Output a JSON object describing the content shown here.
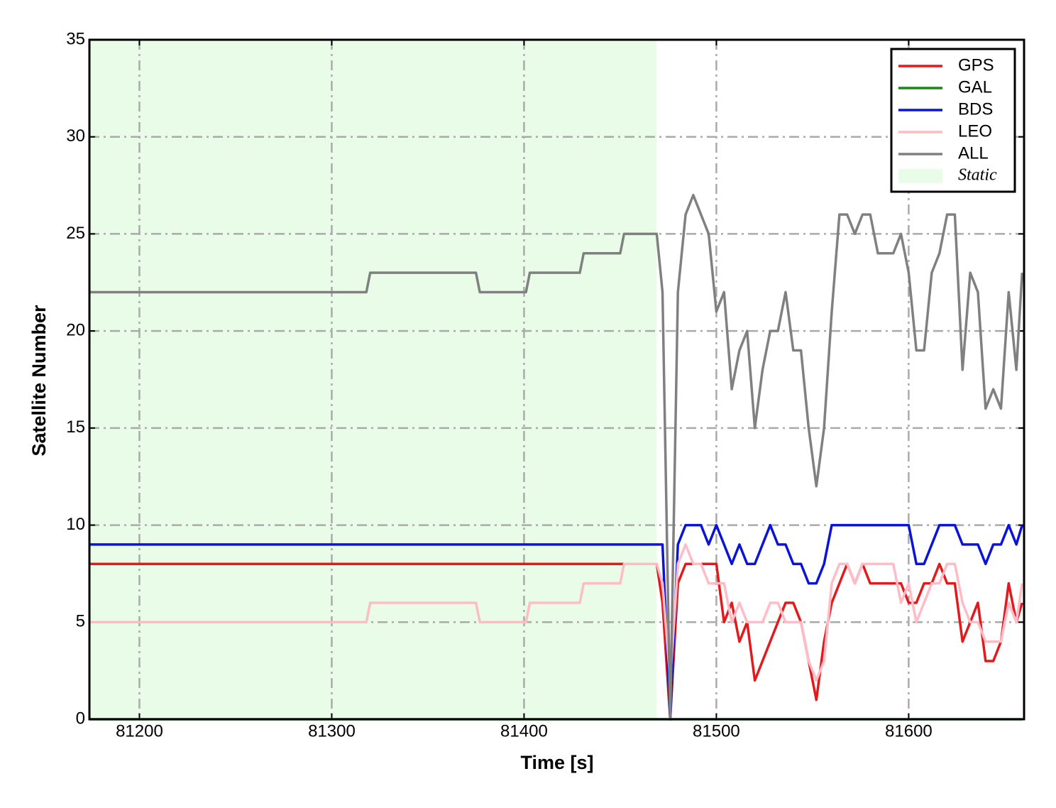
{
  "chart_data": {
    "type": "line",
    "x_label": "Time [s]",
    "y_label": "Satellite Number",
    "xlim": [
      81174,
      81660
    ],
    "ylim": [
      0,
      35
    ],
    "xticks": [
      81200,
      81300,
      81400,
      81500,
      81600
    ],
    "yticks": [
      0,
      5,
      10,
      15,
      20,
      25,
      30,
      35
    ],
    "grid": true,
    "legend": "upper right",
    "static_label": "Static",
    "static_color": "#e8fce8",
    "static_span": [
      81174,
      81469
    ],
    "x": [
      81174,
      81318,
      81320,
      81375,
      81377,
      81401,
      81403,
      81429,
      81431,
      81450,
      81452,
      81469,
      81472,
      81476,
      81480,
      81484,
      81488,
      81492,
      81496,
      81500,
      81504,
      81508,
      81512,
      81516,
      81520,
      81524,
      81528,
      81532,
      81536,
      81540,
      81544,
      81548,
      81552,
      81556,
      81560,
      81564,
      81568,
      81572,
      81576,
      81580,
      81584,
      81588,
      81592,
      81596,
      81600,
      81604,
      81608,
      81612,
      81616,
      81620,
      81624,
      81628,
      81632,
      81636,
      81640,
      81644,
      81648,
      81652,
      81656,
      81659
    ],
    "series": [
      {
        "name": "GPS",
        "color": "#e31a1c",
        "values": [
          8,
          8,
          8,
          8,
          8,
          8,
          8,
          8,
          8,
          8,
          8,
          8,
          6,
          0,
          7,
          8,
          8,
          8,
          8,
          8,
          5,
          6,
          4,
          5,
          2,
          3,
          4,
          5,
          6,
          6,
          5,
          3,
          1,
          4,
          6,
          7,
          8,
          7,
          8,
          7,
          7,
          7,
          7,
          7,
          6,
          6,
          7,
          7,
          8,
          7,
          7,
          4,
          5,
          6,
          3,
          3,
          4,
          7,
          5,
          6
        ]
      },
      {
        "name": "GAL",
        "color": "#138a13",
        "values": [
          0,
          0,
          0,
          0,
          0,
          0,
          0,
          0,
          0,
          0,
          0,
          0,
          0,
          0,
          0,
          0,
          0,
          0,
          0,
          0,
          0,
          0,
          0,
          0,
          0,
          0,
          0,
          0,
          0,
          0,
          0,
          0,
          0,
          0,
          0,
          0,
          0,
          0,
          0,
          0,
          0,
          0,
          0,
          0,
          0,
          0,
          0,
          0,
          0,
          0,
          0,
          0,
          0,
          0,
          0,
          0,
          0,
          0,
          0,
          0
        ]
      },
      {
        "name": "BDS",
        "color": "#0a14d8",
        "values": [
          9,
          9,
          9,
          9,
          9,
          9,
          9,
          9,
          9,
          9,
          9,
          9,
          9,
          0,
          9,
          10,
          10,
          10,
          9,
          10,
          9,
          8,
          9,
          8,
          8,
          9,
          10,
          9,
          9,
          8,
          8,
          7,
          7,
          8,
          10,
          10,
          10,
          10,
          10,
          10,
          10,
          10,
          10,
          10,
          10,
          8,
          8,
          9,
          10,
          10,
          10,
          9,
          9,
          9,
          8,
          9,
          9,
          10,
          9,
          10
        ]
      },
      {
        "name": "LEO",
        "color": "#ffbcc6",
        "values": [
          5,
          5,
          6,
          6,
          5,
          5,
          6,
          6,
          7,
          7,
          8,
          8,
          7,
          2,
          8,
          9,
          8,
          8,
          7,
          7,
          7,
          5,
          6,
          5,
          5,
          5,
          6,
          6,
          5,
          5,
          5,
          3,
          2,
          3,
          7,
          8,
          8,
          7,
          8,
          8,
          8,
          8,
          8,
          6,
          7,
          5,
          6,
          7,
          7,
          8,
          8,
          6,
          5,
          5,
          4,
          4,
          4,
          6,
          5,
          7
        ]
      },
      {
        "name": "ALL",
        "color": "#808080",
        "values": [
          22,
          22,
          23,
          23,
          22,
          22,
          23,
          23,
          24,
          24,
          25,
          25,
          22,
          0,
          22,
          26,
          27,
          26,
          25,
          21,
          22,
          17,
          19,
          20,
          15,
          18,
          20,
          20,
          22,
          19,
          19,
          15,
          12,
          15,
          21,
          26,
          26,
          25,
          26,
          26,
          24,
          24,
          24,
          25,
          23,
          19,
          19,
          23,
          24,
          26,
          26,
          18,
          23,
          22,
          16,
          17,
          16,
          22,
          18,
          23
        ]
      }
    ]
  }
}
